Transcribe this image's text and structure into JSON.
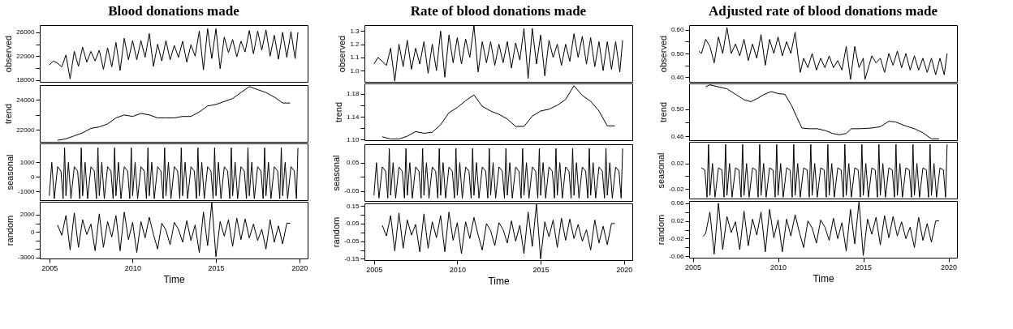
{
  "chart_data": [
    {
      "type": "line",
      "title": "Blood donations made",
      "ylabel": "observed",
      "tick_labels": "y",
      "xlim": [
        2004.43,
        2020.5
      ],
      "xticks": [
        2005,
        2010,
        2015,
        2020
      ],
      "ylim": [
        17700,
        27200
      ],
      "yticks": [
        18000,
        {
          "value": 20000,
          "label": null
        },
        22000,
        {
          "value": 24000,
          "label": null
        },
        26000
      ],
      "series": [
        {
          "color": "#000000",
          "x": [
            2005,
            2005.25,
            2005.5,
            2005.75,
            2006,
            2006.25,
            2006.5,
            2006.75,
            2007,
            2007.25,
            2007.5,
            2007.75,
            2008,
            2008.25,
            2008.5,
            2008.75,
            2009,
            2009.25,
            2009.5,
            2009.75,
            2010,
            2010.25,
            2010.5,
            2010.75,
            2011,
            2011.25,
            2011.5,
            2011.75,
            2012,
            2012.25,
            2012.5,
            2012.75,
            2013,
            2013.25,
            2013.5,
            2013.75,
            2014,
            2014.25,
            2014.5,
            2014.75,
            2015,
            2015.25,
            2015.5,
            2015.75,
            2016,
            2016.25,
            2016.5,
            2016.75,
            2017,
            2017.25,
            2017.5,
            2017.75,
            2018,
            2018.25,
            2018.5,
            2018.75,
            2019,
            2019.25,
            2019.5,
            2019.75,
            2019.92
          ],
          "values": [
            20500,
            21200,
            20800,
            20200,
            22200,
            18200,
            22800,
            20300,
            23500,
            21000,
            22800,
            21200,
            23000,
            19800,
            23400,
            20200,
            24300,
            19600,
            25000,
            21400,
            24600,
            21400,
            24600,
            21800,
            25800,
            20300,
            24000,
            21200,
            24600,
            21400,
            23800,
            21800,
            24500,
            21000,
            23900,
            22000,
            26200,
            19700,
            26600,
            21600,
            26600,
            19900,
            25200,
            22600,
            24800,
            21900,
            24500,
            22700,
            26300,
            22400,
            26200,
            23000,
            26400,
            22000,
            25500,
            21500,
            26000,
            21800,
            26100,
            21600,
            26000
          ]
        }
      ]
    },
    {
      "type": "line",
      "ylabel": "trend",
      "tick_labels": "y",
      "xlim": [
        2004.43,
        2020.5
      ],
      "xticks": [
        2005,
        2010,
        2015,
        2020
      ],
      "ylim": [
        21200,
        25000
      ],
      "yticks": [
        22000,
        {
          "value": 23000,
          "label": null
        },
        24000
      ],
      "series": [
        {
          "color": "#000000",
          "x": [
            2005.5,
            2006,
            2006.5,
            2007,
            2007.5,
            2008,
            2008.5,
            2009,
            2009.5,
            2010,
            2010.5,
            2011,
            2011.5,
            2012,
            2012.5,
            2013,
            2013.5,
            2014,
            2014.5,
            2015,
            2015.5,
            2016,
            2016.5,
            2017,
            2017.5,
            2018,
            2018.5,
            2019,
            2019.45
          ],
          "values": [
            21300,
            21400,
            21600,
            21800,
            22100,
            22200,
            22400,
            22800,
            23000,
            22900,
            23100,
            23000,
            22800,
            22800,
            22800,
            22900,
            22900,
            23200,
            23600,
            23700,
            23900,
            24100,
            24500,
            24900,
            24700,
            24500,
            24200,
            23800,
            23800
          ]
        }
      ]
    },
    {
      "type": "line",
      "ylabel": "seasonal",
      "tick_labels": "y",
      "xlim": [
        2004.43,
        2020.5
      ],
      "xticks": [
        2005,
        2010,
        2015,
        2020
      ],
      "ylim": [
        -1600,
        2300
      ],
      "yticks": [
        -1000,
        0,
        1000
      ],
      "series": [
        {
          "color": "#000000",
          "x": [
            2005,
            2005.15,
            2005.3,
            2005.5,
            2005.7,
            2005.83,
            2005.92,
            2006,
            2006.15,
            2006.3,
            2006.5,
            2006.7,
            2006.83,
            2006.92,
            2007,
            2007.15,
            2007.3,
            2007.5,
            2007.7,
            2007.83,
            2007.92,
            2008,
            2008.15,
            2008.3,
            2008.5,
            2008.7,
            2008.83,
            2008.92,
            2009,
            2009.15,
            2009.3,
            2009.5,
            2009.7,
            2009.83,
            2009.92,
            2010,
            2010.15,
            2010.3,
            2010.5,
            2010.7,
            2010.83,
            2010.92,
            2011,
            2011.15,
            2011.3,
            2011.5,
            2011.7,
            2011.83,
            2011.92,
            2012,
            2012.15,
            2012.3,
            2012.5,
            2012.7,
            2012.83,
            2012.92,
            2013,
            2013.15,
            2013.3,
            2013.5,
            2013.7,
            2013.83,
            2013.92,
            2014,
            2014.15,
            2014.3,
            2014.5,
            2014.7,
            2014.83,
            2014.92,
            2015,
            2015.15,
            2015.3,
            2015.5,
            2015.7,
            2015.83,
            2015.92,
            2016,
            2016.15,
            2016.3,
            2016.5,
            2016.7,
            2016.83,
            2016.92,
            2017,
            2017.15,
            2017.3,
            2017.5,
            2017.7,
            2017.83,
            2017.92,
            2018,
            2018.15,
            2018.3,
            2018.5,
            2018.7,
            2018.83,
            2018.92,
            2019,
            2019.15,
            2019.3,
            2019.5,
            2019.7,
            2019.83,
            2019.92
          ],
          "values": [
            -1300,
            1000,
            -1500,
            700,
            400,
            -1500,
            2000,
            -1300,
            1000,
            -1500,
            700,
            400,
            -1500,
            2000,
            -1300,
            1000,
            -1500,
            700,
            400,
            -1500,
            2000,
            -1300,
            1000,
            -1500,
            700,
            400,
            -1500,
            2000,
            -1300,
            1000,
            -1500,
            700,
            400,
            -1500,
            2000,
            -1300,
            1000,
            -1500,
            700,
            400,
            -1500,
            2000,
            -1300,
            1000,
            -1500,
            700,
            400,
            -1500,
            2000,
            -1300,
            1000,
            -1500,
            700,
            400,
            -1500,
            2000,
            -1300,
            1000,
            -1500,
            700,
            400,
            -1500,
            2000,
            -1300,
            1000,
            -1500,
            700,
            400,
            -1500,
            2000,
            -1300,
            1000,
            -1500,
            700,
            400,
            -1500,
            2000,
            -1300,
            1000,
            -1500,
            700,
            400,
            -1500,
            2000,
            -1300,
            1000,
            -1500,
            700,
            400,
            -1500,
            2000,
            -1300,
            1000,
            -1500,
            700,
            400,
            -1500,
            2000,
            -1300,
            1000,
            -1500,
            700,
            400,
            -1500,
            2000
          ]
        }
      ]
    },
    {
      "type": "line",
      "ylabel": "random",
      "xlabel": "Time",
      "xlim": [
        2004.43,
        2020.5
      ],
      "xticks": [
        2005,
        2010,
        2015,
        2020
      ],
      "ylim": [
        -3100,
        3500
      ],
      "yticks": [
        -3000,
        {
          "value": -2000,
          "label": null
        },
        {
          "value": -1000,
          "label": null
        },
        0,
        {
          "value": 1000,
          "label": null
        },
        2000
      ],
      "series": [
        {
          "color": "#000000",
          "x": [
            2005.5,
            2005.75,
            2006,
            2006.25,
            2006.5,
            2006.75,
            2007,
            2007.25,
            2007.5,
            2007.75,
            2008,
            2008.25,
            2008.5,
            2008.75,
            2009,
            2009.25,
            2009.5,
            2009.75,
            2010,
            2010.25,
            2010.5,
            2010.75,
            2011,
            2011.25,
            2011.5,
            2011.75,
            2012,
            2012.25,
            2012.5,
            2012.75,
            2013,
            2013.25,
            2013.5,
            2013.75,
            2014,
            2014.25,
            2014.5,
            2014.75,
            2015,
            2015.25,
            2015.5,
            2015.75,
            2016,
            2016.25,
            2016.5,
            2016.75,
            2017,
            2017.25,
            2017.5,
            2017.75,
            2018,
            2018.25,
            2018.5,
            2018.75,
            2019,
            2019.25,
            2019.45
          ],
          "values": [
            800,
            -400,
            1900,
            -2100,
            2200,
            -1800,
            1400,
            -300,
            900,
            -2200,
            2100,
            -1800,
            1200,
            -600,
            1900,
            -2200,
            2300,
            -900,
            1100,
            -2400,
            1200,
            -700,
            1700,
            -300,
            -2000,
            1000,
            200,
            -1500,
            1100,
            300,
            -1200,
            1300,
            -1000,
            800,
            -2400,
            2300,
            -1600,
            3400,
            -2900,
            1200,
            -500,
            1400,
            -1700,
            1600,
            -900,
            1500,
            -700,
            900,
            -1000,
            300,
            -2000,
            1400,
            -1200,
            700,
            -1400,
            1000,
            1000
          ]
        }
      ]
    },
    {
      "type": "line",
      "title": "Rate of blood donations made",
      "ylabel": "observed",
      "tick_labels": "y",
      "xlim": [
        2004.43,
        2020.5
      ],
      "xticks": [
        2005,
        2010,
        2015,
        2020
      ],
      "ylim": [
        0.915,
        1.345
      ],
      "yticks": [
        {
          "value": 1.0,
          "label": "1.0"
        },
        1.1,
        1.2,
        1.3
      ],
      "series": [
        {
          "color": "#000000",
          "x": [
            2005,
            2005.25,
            2005.5,
            2005.75,
            2006,
            2006.25,
            2006.5,
            2006.75,
            2007,
            2007.25,
            2007.5,
            2007.75,
            2008,
            2008.25,
            2008.5,
            2008.75,
            2009,
            2009.25,
            2009.5,
            2009.75,
            2010,
            2010.25,
            2010.5,
            2010.75,
            2011,
            2011.25,
            2011.5,
            2011.75,
            2012,
            2012.25,
            2012.5,
            2012.75,
            2013,
            2013.25,
            2013.5,
            2013.75,
            2014,
            2014.25,
            2014.5,
            2014.75,
            2015,
            2015.25,
            2015.5,
            2015.75,
            2016,
            2016.25,
            2016.5,
            2016.75,
            2017,
            2017.25,
            2017.5,
            2017.75,
            2018,
            2018.25,
            2018.5,
            2018.75,
            2019,
            2019.25,
            2019.5,
            2019.75,
            2019.92
          ],
          "values": [
            1.05,
            1.1,
            1.07,
            1.04,
            1.17,
            0.92,
            1.2,
            1.03,
            1.23,
            1.01,
            1.17,
            1.05,
            1.22,
            0.98,
            1.2,
            1.0,
            1.3,
            0.95,
            1.27,
            1.06,
            1.25,
            1.05,
            1.24,
            1.1,
            1.34,
            0.99,
            1.22,
            1.06,
            1.22,
            1.04,
            1.2,
            1.06,
            1.22,
            1.02,
            1.21,
            1.08,
            1.32,
            0.94,
            1.32,
            1.05,
            1.27,
            0.96,
            1.23,
            1.1,
            1.2,
            1.04,
            1.2,
            1.07,
            1.28,
            1.1,
            1.26,
            1.05,
            1.25,
            1.03,
            1.22,
            1.0,
            1.22,
            1.01,
            1.22,
            0.99,
            1.23
          ]
        }
      ]
    },
    {
      "type": "line",
      "ylabel": "trend",
      "tick_labels": "y",
      "xlim": [
        2004.43,
        2020.5
      ],
      "xticks": [
        2005,
        2010,
        2015,
        2020
      ],
      "ylim": [
        1.099,
        1.198
      ],
      "yticks": [
        {
          "value": 1.1,
          "label": "1.10"
        },
        {
          "value": 1.12,
          "label": null
        },
        1.14,
        {
          "value": 1.16,
          "label": null
        },
        1.18
      ],
      "series": [
        {
          "color": "#000000",
          "x": [
            2005.5,
            2006,
            2006.5,
            2007,
            2007.5,
            2008,
            2008.5,
            2009,
            2009.5,
            2010,
            2010.5,
            2011,
            2011.5,
            2012,
            2012.5,
            2013,
            2013.5,
            2014,
            2014.5,
            2015,
            2015.5,
            2016,
            2016.5,
            2017,
            2017.5,
            2018,
            2018.5,
            2019,
            2019.45
          ],
          "values": [
            1.105,
            1.101,
            1.101,
            1.106,
            1.114,
            1.111,
            1.113,
            1.126,
            1.147,
            1.156,
            1.168,
            1.178,
            1.158,
            1.15,
            1.144,
            1.136,
            1.123,
            1.123,
            1.141,
            1.15,
            1.153,
            1.16,
            1.17,
            1.194,
            1.177,
            1.167,
            1.15,
            1.124,
            1.124
          ]
        }
      ]
    },
    {
      "type": "line",
      "ylabel": "seasonal",
      "tick_labels": "y",
      "xlim": [
        2004.43,
        2020.5
      ],
      "xticks": [
        2005,
        2010,
        2015,
        2020
      ],
      "ylim": [
        -0.085,
        0.115
      ],
      "yticks": [
        -0.05,
        {
          "value": 0,
          "label": null
        },
        0.05
      ],
      "series": [
        {
          "color": "#000000",
          "x": [
            2005,
            2005.15,
            2005.3,
            2005.5,
            2005.7,
            2005.83,
            2005.92,
            2006,
            2006.15,
            2006.3,
            2006.5,
            2006.7,
            2006.83,
            2006.92,
            2007,
            2007.15,
            2007.3,
            2007.5,
            2007.7,
            2007.83,
            2007.92,
            2008,
            2008.15,
            2008.3,
            2008.5,
            2008.7,
            2008.83,
            2008.92,
            2009,
            2009.15,
            2009.3,
            2009.5,
            2009.7,
            2009.83,
            2009.92,
            2010,
            2010.15,
            2010.3,
            2010.5,
            2010.7,
            2010.83,
            2010.92,
            2011,
            2011.15,
            2011.3,
            2011.5,
            2011.7,
            2011.83,
            2011.92,
            2012,
            2012.15,
            2012.3,
            2012.5,
            2012.7,
            2012.83,
            2012.92,
            2013,
            2013.15,
            2013.3,
            2013.5,
            2013.7,
            2013.83,
            2013.92,
            2014,
            2014.15,
            2014.3,
            2014.5,
            2014.7,
            2014.83,
            2014.92,
            2015,
            2015.15,
            2015.3,
            2015.5,
            2015.7,
            2015.83,
            2015.92,
            2016,
            2016.15,
            2016.3,
            2016.5,
            2016.7,
            2016.83,
            2016.92,
            2017,
            2017.15,
            2017.3,
            2017.5,
            2017.7,
            2017.83,
            2017.92,
            2018,
            2018.15,
            2018.3,
            2018.5,
            2018.7,
            2018.83,
            2018.92,
            2019,
            2019.15,
            2019.3,
            2019.5,
            2019.7,
            2019.83,
            2019.92
          ],
          "values": [
            -0.065,
            0.05,
            -0.075,
            0.035,
            0.02,
            -0.075,
            0.1,
            -0.065,
            0.05,
            -0.075,
            0.035,
            0.02,
            -0.075,
            0.1,
            -0.065,
            0.05,
            -0.075,
            0.035,
            0.02,
            -0.075,
            0.1,
            -0.065,
            0.05,
            -0.075,
            0.035,
            0.02,
            -0.075,
            0.1,
            -0.065,
            0.05,
            -0.075,
            0.035,
            0.02,
            -0.075,
            0.1,
            -0.065,
            0.05,
            -0.075,
            0.035,
            0.02,
            -0.075,
            0.1,
            -0.065,
            0.05,
            -0.075,
            0.035,
            0.02,
            -0.075,
            0.1,
            -0.065,
            0.05,
            -0.075,
            0.035,
            0.02,
            -0.075,
            0.1,
            -0.065,
            0.05,
            -0.075,
            0.035,
            0.02,
            -0.075,
            0.1,
            -0.065,
            0.05,
            -0.075,
            0.035,
            0.02,
            -0.075,
            0.1,
            -0.065,
            0.05,
            -0.075,
            0.035,
            0.02,
            -0.075,
            0.1,
            -0.065,
            0.05,
            -0.075,
            0.035,
            0.02,
            -0.075,
            0.1,
            -0.065,
            0.05,
            -0.075,
            0.035,
            0.02,
            -0.075,
            0.1,
            -0.065,
            0.05,
            -0.075,
            0.035,
            0.02,
            -0.075,
            0.1,
            -0.065,
            0.05,
            -0.075,
            0.035,
            0.02,
            -0.075,
            0.1
          ]
        }
      ]
    },
    {
      "type": "line",
      "ylabel": "random",
      "xlabel": "Time",
      "xlim": [
        2004.43,
        2020.5
      ],
      "xticks": [
        2005,
        2010,
        2015,
        2020
      ],
      "ylim": [
        -0.157,
        0.164
      ],
      "yticks": [
        -0.15,
        {
          "value": -0.1,
          "label": null
        },
        -0.05,
        {
          "value": 0,
          "label": null
        },
        0.05,
        {
          "value": 0.1,
          "label": null
        },
        0.15
      ],
      "series": [
        {
          "color": "#000000",
          "x": [
            2005.5,
            2005.75,
            2006,
            2006.25,
            2006.5,
            2006.75,
            2007,
            2007.25,
            2007.5,
            2007.75,
            2008,
            2008.25,
            2008.5,
            2008.75,
            2009,
            2009.25,
            2009.5,
            2009.75,
            2010,
            2010.25,
            2010.5,
            2010.75,
            2011,
            2011.25,
            2011.5,
            2011.75,
            2012,
            2012.25,
            2012.5,
            2012.75,
            2013,
            2013.25,
            2013.5,
            2013.75,
            2014,
            2014.25,
            2014.5,
            2014.75,
            2015,
            2015.25,
            2015.5,
            2015.75,
            2016,
            2016.25,
            2016.5,
            2016.75,
            2017,
            2017.25,
            2017.5,
            2017.75,
            2018,
            2018.25,
            2018.5,
            2018.75,
            2019,
            2019.25,
            2019.45
          ],
          "values": [
            0.04,
            -0.02,
            0.095,
            -0.105,
            0.11,
            -0.09,
            0.07,
            -0.015,
            0.045,
            -0.11,
            0.105,
            -0.09,
            0.06,
            -0.03,
            0.095,
            -0.11,
            0.115,
            -0.045,
            0.055,
            -0.12,
            0.06,
            -0.035,
            0.085,
            -0.015,
            -0.1,
            0.05,
            0.01,
            -0.075,
            0.055,
            0.015,
            -0.06,
            0.065,
            -0.05,
            0.04,
            -0.12,
            0.115,
            -0.08,
            0.16,
            -0.15,
            0.06,
            -0.025,
            0.07,
            -0.085,
            0.08,
            -0.045,
            0.075,
            -0.035,
            0.045,
            -0.05,
            0.015,
            -0.1,
            0.07,
            -0.06,
            0.035,
            -0.07,
            0.05,
            0.05
          ]
        }
      ]
    },
    {
      "type": "line",
      "title": "Adjusted rate of blood donations made",
      "ylabel": "observed",
      "tick_labels": "y",
      "xlim": [
        2004.78,
        2020.5
      ],
      "xticks": [
        2005,
        2010,
        2015,
        2020
      ],
      "ylim": [
        0.38,
        0.62
      ],
      "yticks": [
        {
          "value": 0.4,
          "label": "0.40"
        },
        {
          "value": 0.45,
          "label": null
        },
        {
          "value": 0.5,
          "label": "0.50"
        },
        {
          "value": 0.55,
          "label": null
        },
        {
          "value": 0.6,
          "label": "0.60"
        }
      ],
      "series": [
        {
          "color": "#000000",
          "x": [
            2005.35,
            2005.5,
            2005.75,
            2006,
            2006.25,
            2006.5,
            2006.75,
            2007,
            2007.25,
            2007.5,
            2007.75,
            2008,
            2008.25,
            2008.5,
            2008.75,
            2009,
            2009.25,
            2009.5,
            2009.75,
            2010,
            2010.25,
            2010.5,
            2010.75,
            2011,
            2011.15,
            2011.3,
            2011.5,
            2011.75,
            2012,
            2012.25,
            2012.5,
            2012.75,
            2013,
            2013.25,
            2013.5,
            2013.75,
            2014,
            2014.25,
            2014.5,
            2014.75,
            2015,
            2015.1,
            2015.5,
            2015.75,
            2016,
            2016.25,
            2016.5,
            2016.75,
            2017,
            2017.25,
            2017.5,
            2017.75,
            2018,
            2018.25,
            2018.5,
            2018.75,
            2019,
            2019.25,
            2019.5,
            2019.75,
            2019.92
          ],
          "values": [
            0.51,
            0.5,
            0.56,
            0.53,
            0.46,
            0.57,
            0.5,
            0.61,
            0.5,
            0.54,
            0.49,
            0.56,
            0.47,
            0.54,
            0.48,
            0.58,
            0.45,
            0.56,
            0.5,
            0.57,
            0.49,
            0.55,
            0.5,
            0.59,
            0.5,
            0.42,
            0.48,
            0.44,
            0.5,
            0.43,
            0.48,
            0.44,
            0.49,
            0.44,
            0.47,
            0.43,
            0.53,
            0.39,
            0.53,
            0.44,
            0.48,
            0.39,
            0.49,
            0.46,
            0.48,
            0.42,
            0.5,
            0.45,
            0.51,
            0.44,
            0.5,
            0.43,
            0.49,
            0.43,
            0.48,
            0.42,
            0.48,
            0.41,
            0.48,
            0.41,
            0.5
          ]
        }
      ]
    },
    {
      "type": "line",
      "ylabel": "trend",
      "tick_labels": "y",
      "xlim": [
        2004.78,
        2020.5
      ],
      "xticks": [
        2005,
        2010,
        2015,
        2020
      ],
      "ylim": [
        0.454,
        0.538
      ],
      "yticks": [
        {
          "value": 0.46,
          "label": "0.46"
        },
        {
          "value": 0.48,
          "label": null
        },
        {
          "value": 0.5,
          "label": "0.50"
        }
      ],
      "series": [
        {
          "color": "#000000",
          "x": [
            2005.75,
            2006,
            2006.5,
            2007,
            2007.5,
            2008,
            2008.4,
            2008.8,
            2009.2,
            2009.6,
            2010,
            2010.4,
            2010.8,
            2011.1,
            2011.4,
            2011.8,
            2012.3,
            2012.8,
            2013.2,
            2013.6,
            2014,
            2014.3,
            2014.8,
            2015.5,
            2016,
            2016.5,
            2016.9,
            2017.5,
            2018,
            2018.5,
            2019,
            2019.45
          ],
          "values": [
            0.533,
            0.536,
            0.533,
            0.53,
            0.522,
            0.514,
            0.511,
            0.516,
            0.522,
            0.526,
            0.523,
            0.522,
            0.505,
            0.488,
            0.472,
            0.471,
            0.471,
            0.468,
            0.464,
            0.462,
            0.464,
            0.471,
            0.471,
            0.472,
            0.474,
            0.482,
            0.481,
            0.475,
            0.471,
            0.465,
            0.456,
            0.456
          ]
        }
      ]
    },
    {
      "type": "line",
      "ylabel": "seasonal",
      "tick_labels": "y",
      "xlim": [
        2004.78,
        2020.5
      ],
      "xticks": [
        2005,
        2010,
        2015,
        2020
      ],
      "ylim": [
        -0.035,
        0.054
      ],
      "yticks": [
        -0.02,
        {
          "value": 0,
          "label": null
        },
        0.02
      ],
      "series": [
        {
          "color": "#000000",
          "x": [
            2005.5,
            2005.7,
            2005.83,
            2005.92,
            2006,
            2006.15,
            2006.3,
            2006.5,
            2006.7,
            2006.83,
            2006.92,
            2007,
            2007.15,
            2007.3,
            2007.5,
            2007.7,
            2007.83,
            2007.92,
            2008,
            2008.15,
            2008.3,
            2008.5,
            2008.7,
            2008.83,
            2008.92,
            2009,
            2009.15,
            2009.3,
            2009.5,
            2009.7,
            2009.83,
            2009.92,
            2010,
            2010.15,
            2010.3,
            2010.5,
            2010.7,
            2010.83,
            2010.92,
            2011,
            2011.15,
            2011.3,
            2011.5,
            2011.7,
            2011.83,
            2011.92,
            2012,
            2012.15,
            2012.3,
            2012.5,
            2012.7,
            2012.83,
            2012.92,
            2013,
            2013.15,
            2013.3,
            2013.5,
            2013.7,
            2013.83,
            2013.92,
            2014,
            2014.15,
            2014.3,
            2014.5,
            2014.7,
            2014.83,
            2014.92,
            2015,
            2015.15,
            2015.3,
            2015.5,
            2015.7,
            2015.83,
            2015.92,
            2016,
            2016.15,
            2016.3,
            2016.5,
            2016.7,
            2016.83,
            2016.92,
            2017,
            2017.15,
            2017.3,
            2017.5,
            2017.7,
            2017.83,
            2017.92,
            2018,
            2018.15,
            2018.3,
            2018.5,
            2018.7,
            2018.83,
            2018.92,
            2019,
            2019.15,
            2019.3,
            2019.5,
            2019.7,
            2019.83,
            2019.92
          ],
          "values": [
            0.013,
            0.01,
            -0.033,
            0.05,
            -0.03,
            0.02,
            -0.033,
            0.013,
            0.01,
            -0.033,
            0.05,
            -0.03,
            0.02,
            -0.033,
            0.013,
            0.01,
            -0.033,
            0.05,
            -0.03,
            0.02,
            -0.033,
            0.013,
            0.01,
            -0.033,
            0.05,
            -0.03,
            0.02,
            -0.033,
            0.013,
            0.01,
            -0.033,
            0.05,
            -0.03,
            0.02,
            -0.033,
            0.013,
            0.01,
            -0.033,
            0.05,
            -0.03,
            0.02,
            -0.033,
            0.013,
            0.01,
            -0.033,
            0.05,
            -0.03,
            0.02,
            -0.033,
            0.013,
            0.01,
            -0.033,
            0.05,
            -0.03,
            0.02,
            -0.033,
            0.013,
            0.01,
            -0.033,
            0.05,
            -0.03,
            0.02,
            -0.033,
            0.013,
            0.01,
            -0.033,
            0.05,
            -0.03,
            0.02,
            -0.033,
            0.013,
            0.01,
            -0.033,
            0.05,
            -0.03,
            0.02,
            -0.033,
            0.013,
            0.01,
            -0.033,
            0.05,
            -0.03,
            0.02,
            -0.033,
            0.013,
            0.01,
            -0.033,
            0.05,
            -0.03,
            0.02,
            -0.033,
            0.013,
            0.01,
            -0.033,
            0.05,
            -0.03,
            0.02,
            -0.033,
            0.013,
            0.01,
            -0.033,
            0.05
          ]
        }
      ]
    },
    {
      "type": "line",
      "ylabel": "random",
      "xlabel": "Time",
      "xlim": [
        2004.78,
        2020.5
      ],
      "xticks": [
        2005,
        2010,
        2015,
        2020
      ],
      "ylim": [
        -0.063,
        0.065
      ],
      "yticks": [
        -0.06,
        {
          "value": -0.04,
          "label": null
        },
        -0.02,
        {
          "value": 0,
          "label": null
        },
        0.02,
        {
          "value": 0.04,
          "label": null
        },
        0.06
      ],
      "series": [
        {
          "color": "#000000",
          "x": [
            2005.6,
            2005.75,
            2006,
            2006.25,
            2006.5,
            2006.75,
            2007,
            2007.25,
            2007.5,
            2007.75,
            2008,
            2008.25,
            2008.5,
            2008.75,
            2009,
            2009.25,
            2009.5,
            2009.75,
            2010,
            2010.25,
            2010.5,
            2010.75,
            2011,
            2011.25,
            2011.5,
            2011.75,
            2012,
            2012.25,
            2012.5,
            2012.75,
            2013,
            2013.25,
            2013.5,
            2013.75,
            2014,
            2014.25,
            2014.5,
            2014.75,
            2015,
            2015.25,
            2015.5,
            2015.75,
            2016,
            2016.25,
            2016.5,
            2016.75,
            2017,
            2017.25,
            2017.5,
            2017.75,
            2018,
            2018.25,
            2018.5,
            2018.75,
            2019,
            2019.25,
            2019.45
          ],
          "values": [
            -0.015,
            -0.008,
            0.04,
            -0.055,
            0.06,
            -0.045,
            0.03,
            -0.006,
            0.018,
            -0.045,
            0.042,
            -0.036,
            0.024,
            -0.012,
            0.04,
            -0.05,
            0.046,
            -0.018,
            0.022,
            -0.05,
            0.024,
            -0.014,
            0.034,
            -0.006,
            -0.04,
            0.02,
            0.004,
            -0.03,
            0.022,
            0.006,
            -0.024,
            0.026,
            -0.02,
            0.016,
            -0.048,
            0.046,
            -0.032,
            0.064,
            -0.058,
            0.024,
            -0.01,
            0.028,
            -0.034,
            0.032,
            -0.018,
            0.03,
            -0.014,
            0.018,
            -0.02,
            0.006,
            -0.04,
            0.028,
            -0.024,
            0.014,
            -0.028,
            0.02,
            0.02
          ]
        }
      ]
    }
  ]
}
